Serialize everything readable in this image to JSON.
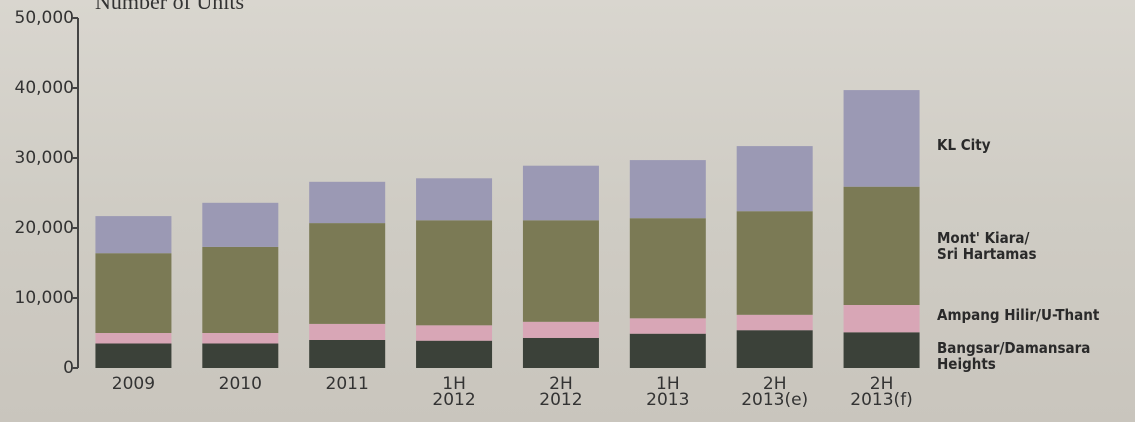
{
  "chart_data": {
    "type": "stacked-bar",
    "title": "Number of Units",
    "categories": [
      "2009",
      "2010",
      "2011",
      "1H\n2012",
      "2H\n2012",
      "1H\n2013",
      "2H\n2013(e)",
      "2H\n2013(f)"
    ],
    "series": [
      {
        "name": "Bangsar/Damansara\nHeights",
        "color": "#3b4139",
        "values": [
          3500,
          3500,
          4000,
          3900,
          4300,
          4900,
          5400,
          5100
        ]
      },
      {
        "name": "Ampang Hilir/U-Thant",
        "color": "#d8a6b6",
        "values": [
          1500,
          1500,
          2300,
          2200,
          2300,
          2200,
          2200,
          3900
        ]
      },
      {
        "name": "Mont' Kiara/\nSri Hartamas",
        "color": "#7b7a55",
        "values": [
          11400,
          12300,
          14400,
          15000,
          14500,
          14300,
          14800,
          16900
        ]
      },
      {
        "name": "KL City",
        "color": "#9b99b4",
        "values": [
          5300,
          6300,
          5900,
          6000,
          7800,
          8300,
          9300,
          13800
        ]
      }
    ],
    "ylim": [
      0,
      50000
    ],
    "yticks": [
      0,
      {
        "value": 10000,
        "label": "10,000"
      },
      {
        "value": 20000,
        "label": "20,000"
      },
      {
        "value": 30000,
        "label": "30,000"
      },
      {
        "value": 40000,
        "label": "40,000"
      },
      {
        "value": 50000,
        "label": "50,000"
      }
    ]
  }
}
